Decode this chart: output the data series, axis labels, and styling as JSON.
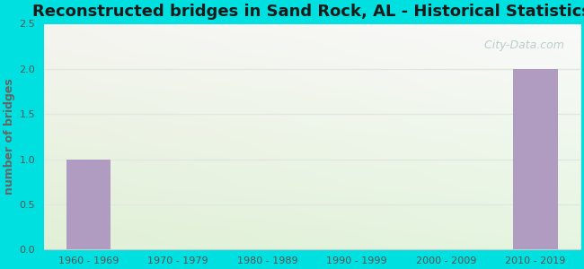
{
  "title": "Reconstructed bridges in Sand Rock, AL - Historical Statistics",
  "categories": [
    "1960 - 1969",
    "1970 - 1979",
    "1980 - 1989",
    "1990 - 1999",
    "2000 - 2009",
    "2010 - 2019"
  ],
  "values": [
    1,
    0,
    0,
    0,
    0,
    2
  ],
  "bar_color": "#b09cc0",
  "ylabel": "number of bridges",
  "ylim": [
    0,
    2.5
  ],
  "yticks": [
    0,
    0.5,
    1,
    1.5,
    2,
    2.5
  ],
  "background_outer": "#00e0e0",
  "grid_color": "#e0e8e0",
  "title_fontsize": 13,
  "axis_label_fontsize": 9,
  "tick_fontsize": 8,
  "ylabel_color": "#666666",
  "tick_color": "#555555",
  "watermark": "  City-Data.com",
  "watermark_color": "#aec8c8"
}
